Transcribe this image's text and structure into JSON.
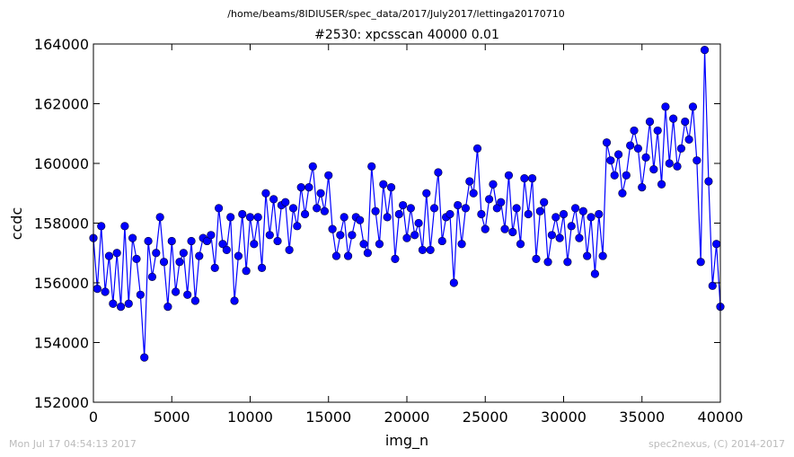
{
  "chart_data": {
    "type": "line",
    "subtitle": "/home/beams/8IDIUSER/spec_data/2017/July2017/lettinga20170710",
    "title": "#2530: xpcsscan 40000 0.01",
    "xlabel": "img_n",
    "ylabel": "ccdc",
    "timestamp": "Mon Jul 17 04:54:13 2017",
    "credit": "spec2nexus, (C) 2014-2017",
    "color": "#0000ff",
    "xlim": [
      0,
      40000
    ],
    "ylim": [
      152000,
      164000
    ],
    "xticks": [
      0,
      5000,
      10000,
      15000,
      20000,
      25000,
      30000,
      35000,
      40000
    ],
    "yticks": [
      152000,
      154000,
      156000,
      158000,
      160000,
      162000,
      164000
    ],
    "x": [
      0,
      250,
      500,
      750,
      1000,
      1250,
      1500,
      1750,
      2000,
      2250,
      2500,
      2750,
      3000,
      3250,
      3500,
      3750,
      4000,
      4250,
      4500,
      4750,
      5000,
      5250,
      5500,
      5750,
      6000,
      6250,
      6500,
      6750,
      7000,
      7250,
      7500,
      7750,
      8000,
      8250,
      8500,
      8750,
      9000,
      9250,
      9500,
      9750,
      10000,
      10250,
      10500,
      10750,
      11000,
      11250,
      11500,
      11750,
      12000,
      12250,
      12500,
      12750,
      13000,
      13250,
      13500,
      13750,
      14000,
      14250,
      14500,
      14750,
      15000,
      15250,
      15500,
      15750,
      16000,
      16250,
      16500,
      16750,
      17000,
      17250,
      17500,
      17750,
      18000,
      18250,
      18500,
      18750,
      19000,
      19250,
      19500,
      19750,
      20000,
      20250,
      20500,
      20750,
      21000,
      21250,
      21500,
      21750,
      22000,
      22250,
      22500,
      22750,
      23000,
      23250,
      23500,
      23750,
      24000,
      24250,
      24500,
      24750,
      25000,
      25250,
      25500,
      25750,
      26000,
      26250,
      26500,
      26750,
      27000,
      27250,
      27500,
      27750,
      28000,
      28250,
      28500,
      28750,
      29000,
      29250,
      29500,
      29750,
      30000,
      30250,
      30500,
      30750,
      31000,
      31250,
      31500,
      31750,
      32000,
      32250,
      32500,
      32750,
      33000,
      33250,
      33500,
      33750,
      34000,
      34250,
      34500,
      34750,
      35000,
      35250,
      35500,
      35750,
      36000,
      36250,
      36500,
      36750,
      37000,
      37250,
      37500,
      37750,
      38000,
      38250,
      38500,
      38750,
      39000,
      39250,
      39500,
      39750,
      40000
    ],
    "values": [
      157500,
      155800,
      157900,
      155700,
      156900,
      155300,
      157000,
      155200,
      157900,
      155300,
      157500,
      156800,
      155600,
      153500,
      157400,
      156200,
      157000,
      158200,
      156700,
      155200,
      157400,
      155700,
      156700,
      157000,
      155600,
      157400,
      155400,
      156900,
      157500,
      157400,
      157600,
      156500,
      158500,
      157300,
      157100,
      158200,
      155400,
      156900,
      158300,
      156400,
      158200,
      157300,
      158200,
      156500,
      159000,
      157600,
      158800,
      157400,
      158600,
      158700,
      157100,
      158500,
      157900,
      159200,
      158300,
      159200,
      159900,
      158500,
      159000,
      158400,
      159600,
      157800,
      156900,
      157600,
      158200,
      156900,
      157600,
      158200,
      158100,
      157300,
      157000,
      159900,
      158400,
      157300,
      159300,
      158200,
      159200,
      156800,
      158300,
      158600,
      157500,
      158500,
      157600,
      158000,
      157100,
      159000,
      157100,
      158500,
      159700,
      157400,
      158200,
      158300,
      156000,
      158600,
      157300,
      158500,
      159400,
      159000,
      160500,
      158300,
      157800,
      158800,
      159300,
      158500,
      158700,
      157800,
      159600,
      157700,
      158500,
      157300,
      159500,
      158300,
      159500,
      156800,
      158400,
      158700,
      156700,
      157600,
      158200,
      157500,
      158300,
      156700,
      157900,
      158500,
      157500,
      158400,
      156900,
      158200,
      156300,
      158300,
      156900,
      160700,
      160100,
      159600,
      160300,
      159000,
      159600,
      160600,
      161100,
      160500,
      159200,
      160200,
      161400,
      159800,
      161100,
      159300,
      161900,
      160000,
      161500,
      159900,
      160500,
      161400,
      160800,
      161900,
      160100,
      156700,
      163800,
      159400,
      155900,
      157300,
      155200
    ]
  }
}
